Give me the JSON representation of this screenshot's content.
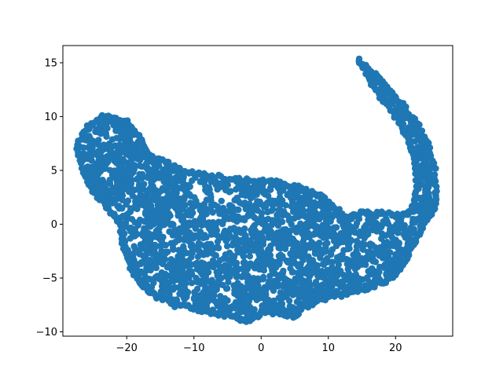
{
  "chart_data": {
    "type": "scatter",
    "title": "",
    "xlabel": "",
    "ylabel": "",
    "xlim": [
      -29.5,
      28.5
    ],
    "ylim": [
      -10.4,
      16.6
    ],
    "xticks": [
      -20,
      -10,
      0,
      10,
      20
    ],
    "yticks": [
      -10,
      -5,
      0,
      5,
      10,
      15
    ],
    "grid": false,
    "legend": "none",
    "marker": "circle",
    "color": "#1f77b4",
    "series": [
      {
        "outline": [
          [
            14.5,
            15.2
          ],
          [
            17.5,
            13.5
          ],
          [
            20.5,
            11.5
          ],
          [
            23.0,
            9.5
          ],
          [
            24.8,
            7.5
          ],
          [
            25.8,
            5.0
          ],
          [
            26.0,
            2.5
          ],
          [
            25.8,
            1.5
          ],
          [
            24.5,
            0.5
          ],
          [
            23.0,
            -1.5
          ],
          [
            21.5,
            -3.5
          ],
          [
            19.5,
            -5.0
          ],
          [
            16.0,
            -6.0
          ],
          [
            12.5,
            -6.5
          ],
          [
            9.0,
            -7.0
          ],
          [
            6.0,
            -7.8
          ],
          [
            5.0,
            -8.5
          ],
          [
            2.0,
            -8.3
          ],
          [
            0.5,
            -8.0
          ],
          [
            -1.0,
            -8.7
          ],
          [
            -2.5,
            -8.9
          ],
          [
            -4.5,
            -8.5
          ],
          [
            -7.0,
            -8.2
          ],
          [
            -10.0,
            -7.8
          ],
          [
            -13.0,
            -7.5
          ],
          [
            -16.0,
            -6.5
          ],
          [
            -18.0,
            -5.5
          ],
          [
            -19.5,
            -4.0
          ],
          [
            -20.5,
            -2.0
          ],
          [
            -21.0,
            0.0
          ],
          [
            -23.5,
            2.0
          ],
          [
            -26.0,
            4.0
          ],
          [
            -27.5,
            7.0
          ],
          [
            -26.0,
            9.0
          ],
          [
            -23.5,
            10.0
          ],
          [
            -20.0,
            9.5
          ],
          [
            -18.0,
            8.0
          ],
          [
            -17.0,
            6.5
          ],
          [
            -15.0,
            6.0
          ],
          [
            -12.0,
            5.0
          ],
          [
            -8.0,
            4.5
          ],
          [
            -4.0,
            4.2
          ],
          [
            -1.0,
            4.0
          ],
          [
            3.0,
            3.8
          ],
          [
            6.0,
            3.3
          ],
          [
            9.0,
            2.5
          ],
          [
            11.0,
            1.5
          ],
          [
            12.5,
            0.5
          ],
          [
            15.0,
            1.0
          ],
          [
            18.0,
            1.0
          ],
          [
            21.0,
            0.8
          ],
          [
            22.5,
            1.5
          ],
          [
            23.2,
            3.5
          ],
          [
            23.0,
            5.5
          ],
          [
            22.2,
            7.5
          ],
          [
            21.0,
            9.0
          ],
          [
            19.5,
            10.5
          ],
          [
            17.0,
            12.5
          ]
        ],
        "ridge": [
          [
            14.5,
            15.2
          ],
          [
            16.5,
            14.0
          ],
          [
            18.5,
            12.7
          ],
          [
            20.5,
            11.2
          ],
          [
            22.5,
            9.5
          ],
          [
            23.8,
            7.8
          ],
          [
            24.5,
            6.0
          ],
          [
            24.8,
            4.0
          ],
          [
            24.6,
            2.0
          ],
          [
            24.0,
            0.5
          ]
        ],
        "hook": [
          [
            -24.5,
            8.5
          ],
          [
            -22.5,
            9.8
          ],
          [
            -20.5,
            9.6
          ],
          [
            -19.5,
            8.3
          ],
          [
            -20.5,
            7.0
          ],
          [
            -22.5,
            6.2
          ],
          [
            -24.0,
            5.5
          ],
          [
            -25.5,
            5.0
          ],
          [
            -24.5,
            3.5
          ],
          [
            -22.5,
            3.0
          ],
          [
            -20.5,
            4.0
          ],
          [
            -18.5,
            5.5
          ]
        ],
        "point_count": 2600
      }
    ]
  }
}
